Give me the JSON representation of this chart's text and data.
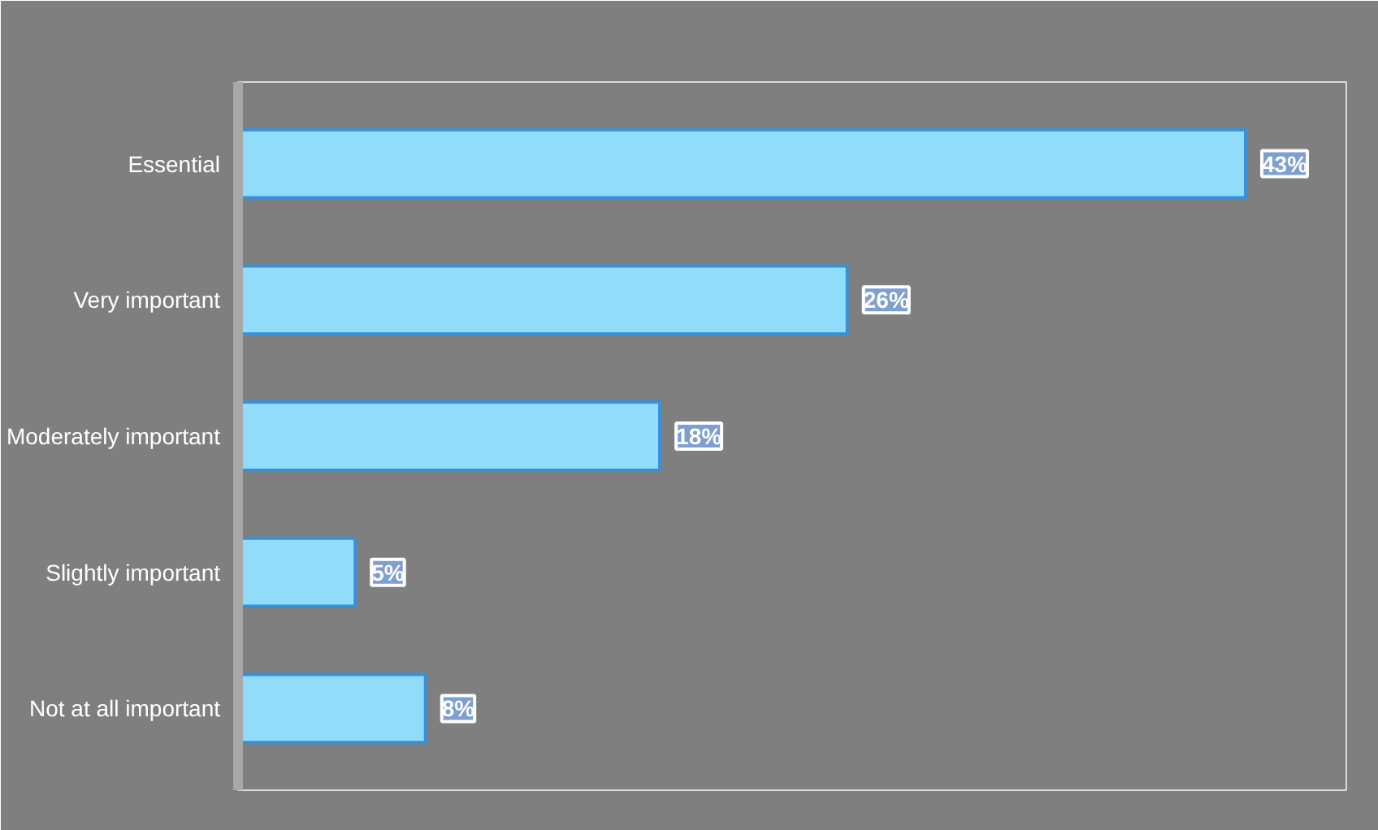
{
  "chart_data": {
    "type": "bar",
    "orientation": "horizontal",
    "categories": [
      "Essential",
      "Very important",
      "Moderately important",
      "Slightly important",
      "Not at all important"
    ],
    "values": [
      43,
      26,
      18,
      5,
      8
    ],
    "color": "#8fdcfb",
    "value_labels": [
      "43%",
      "26%",
      "18%",
      "5%",
      "8%"
    ]
  }
}
